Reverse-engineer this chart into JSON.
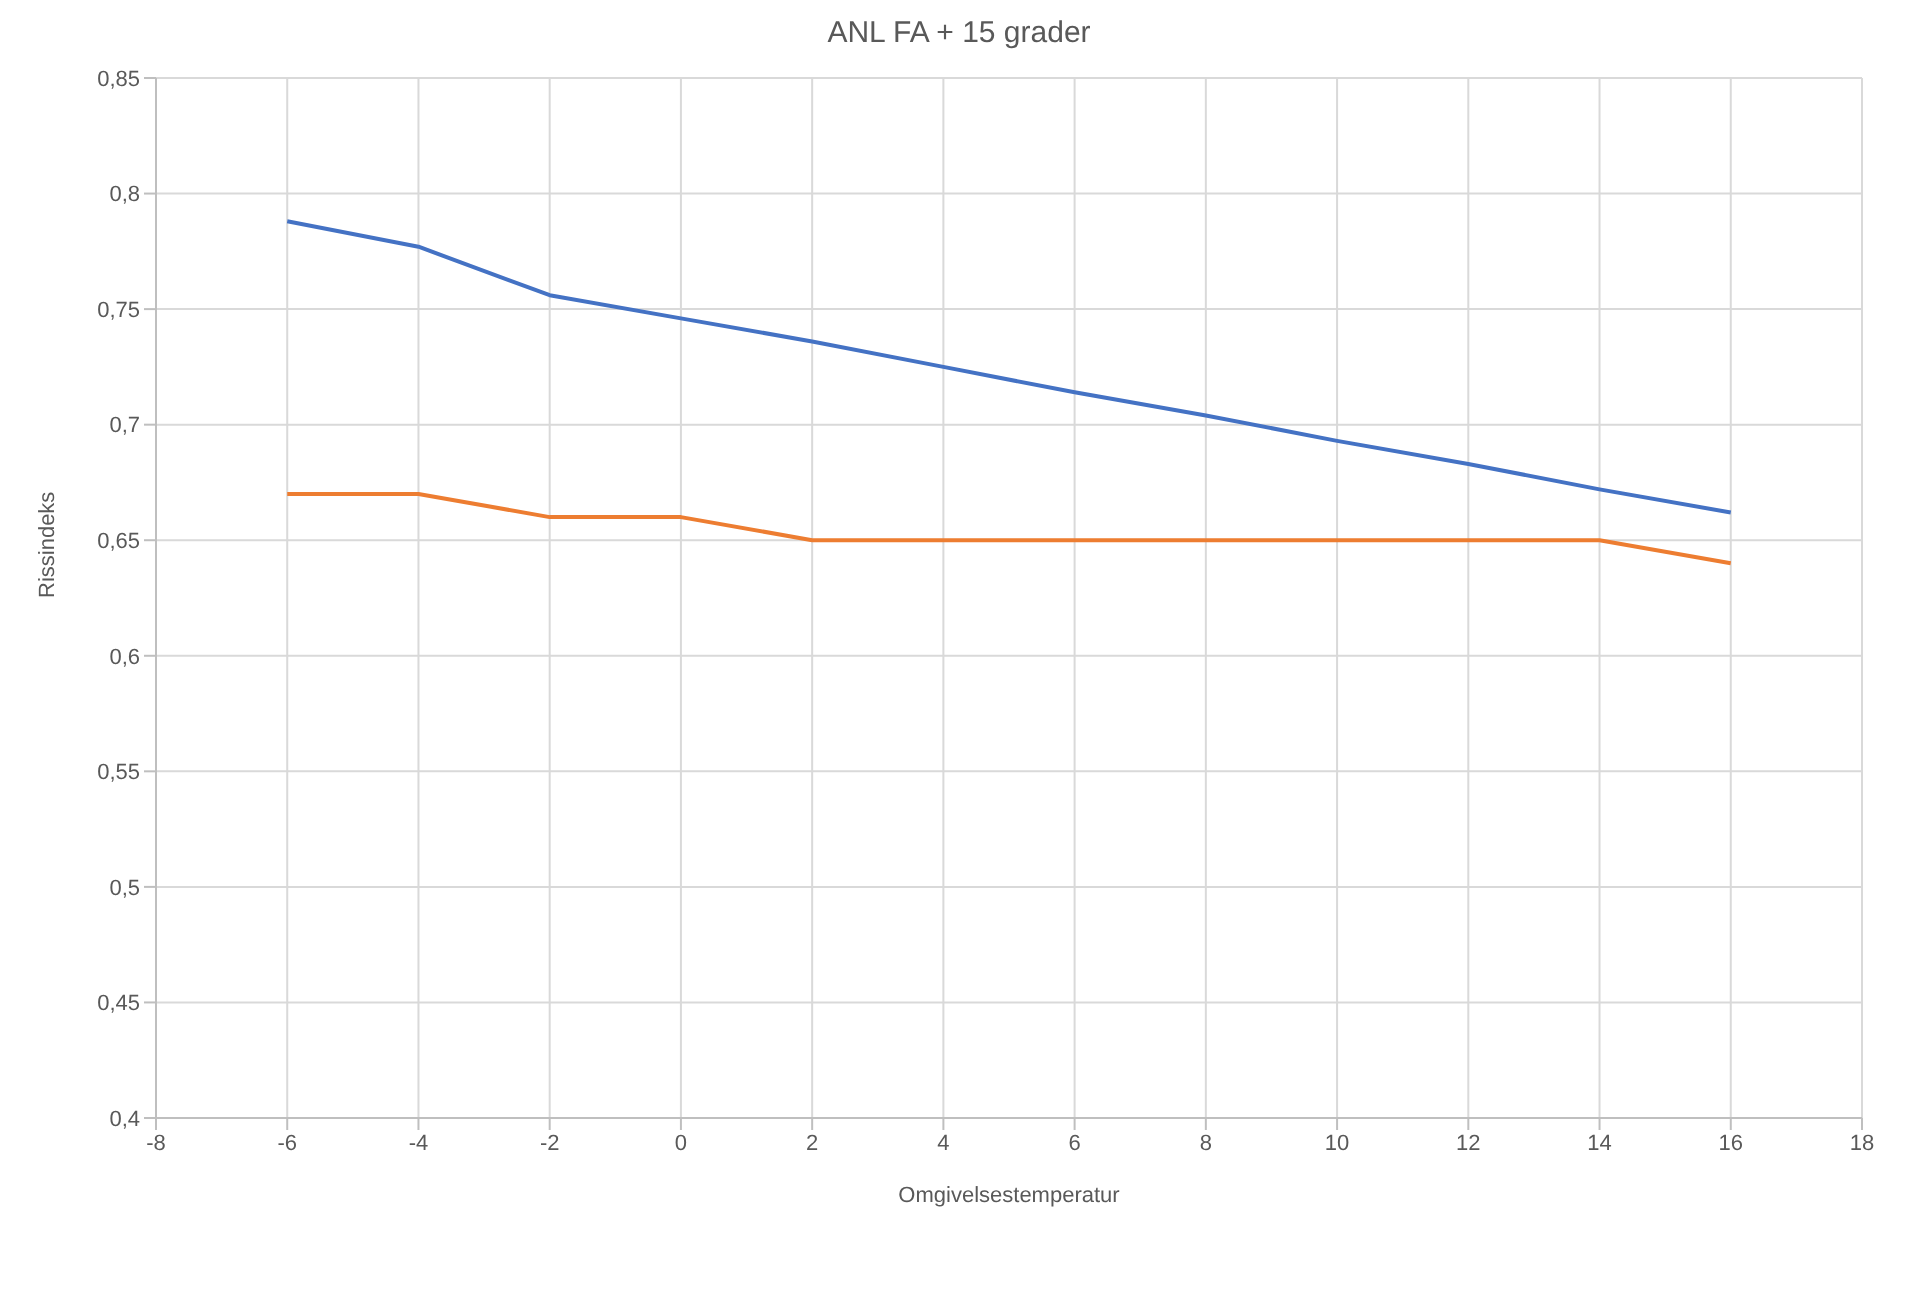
{
  "chart_data": {
    "type": "line",
    "title": "ANL FA + 15 grader",
    "xlabel": "Omgivelsestemperatur",
    "ylabel": "Rissindeks",
    "x": [
      -6,
      -4,
      -2,
      0,
      2,
      4,
      6,
      8,
      10,
      12,
      14,
      16
    ],
    "series": [
      {
        "color": "#4472c4",
        "values": [
          0.788,
          0.777,
          0.756,
          0.746,
          0.736,
          0.725,
          0.714,
          0.704,
          0.693,
          0.683,
          0.672,
          0.662
        ]
      },
      {
        "color": "#ed7d31",
        "values": [
          0.67,
          0.67,
          0.66,
          0.66,
          0.65,
          0.65,
          0.65,
          0.65,
          0.65,
          0.65,
          0.65,
          0.64
        ]
      }
    ],
    "xlim": [
      -8,
      18
    ],
    "xticks": [
      -8,
      -6,
      -4,
      -2,
      0,
      2,
      4,
      6,
      8,
      10,
      12,
      14,
      16,
      18
    ],
    "ylim": [
      0.4,
      0.85
    ],
    "yticks": [
      {
        "value": 0.4,
        "label": "0,4"
      },
      {
        "value": 0.45,
        "label": "0,45"
      },
      {
        "value": 0.5,
        "label": "0,5"
      },
      {
        "value": 0.55,
        "label": "0,55"
      },
      {
        "value": 0.6,
        "label": "0,6"
      },
      {
        "value": 0.65,
        "label": "0,65"
      },
      {
        "value": 0.7,
        "label": "0,7"
      },
      {
        "value": 0.75,
        "label": "0,75"
      },
      {
        "value": 0.8,
        "label": "0,8"
      },
      {
        "value": 0.85,
        "label": "0,85"
      }
    ],
    "grid": true,
    "marker": "none",
    "line_style": "solid"
  }
}
